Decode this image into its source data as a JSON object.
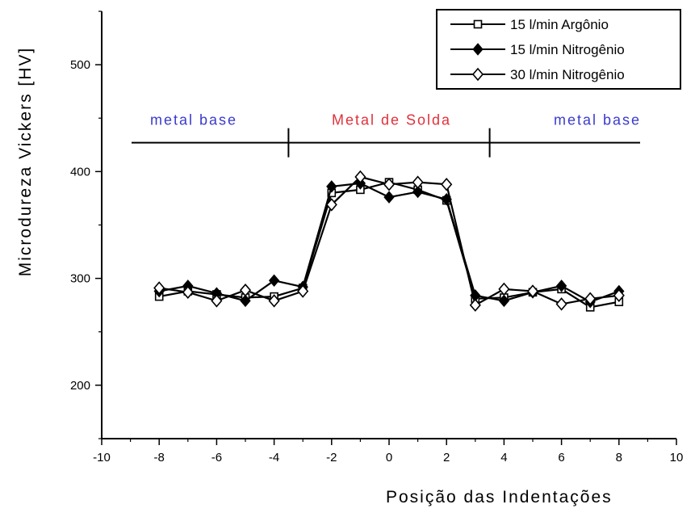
{
  "chart_data": {
    "type": "line",
    "xlabel": "Posição das Indentações",
    "ylabel": "Microdureza Vickers [HV]",
    "xlim": [
      -10,
      10
    ],
    "ylim": [
      150,
      550
    ],
    "x_ticks": [
      "-10",
      "-8",
      "-6",
      "-4",
      "-2",
      "0",
      "2",
      "4",
      "6",
      "8",
      "10"
    ],
    "y_ticks": [
      "200",
      "300",
      "400",
      "500"
    ],
    "legend_position": "top-right",
    "grid": false,
    "series": [
      {
        "name": "15 l/min Argônio",
        "marker": "open-square",
        "x": [
          -8,
          -7,
          -6,
          -5,
          -4,
          -3,
          -2,
          -1,
          0,
          1,
          2,
          3,
          4,
          5,
          6,
          7,
          8
        ],
        "y": [
          283,
          288,
          285,
          282,
          283,
          291,
          380,
          383,
          390,
          383,
          373,
          281,
          282,
          287,
          290,
          273,
          278
        ]
      },
      {
        "name": "15 l/min Nitrogênio",
        "marker": "filled-diamond",
        "x": [
          -8,
          -7,
          -6,
          -5,
          -4,
          -3,
          -2,
          -1,
          0,
          1,
          2,
          3,
          4,
          5,
          6,
          7,
          8
        ],
        "y": [
          288,
          293,
          286,
          279,
          298,
          292,
          386,
          389,
          376,
          381,
          374,
          284,
          279,
          287,
          293,
          278,
          288
        ]
      },
      {
        "name": "30 l/min Nitrogênio",
        "marker": "open-diamond",
        "x": [
          -8,
          -7,
          -6,
          -5,
          -4,
          -3,
          -2,
          -1,
          0,
          1,
          2,
          3,
          4,
          5,
          6,
          7,
          8
        ],
        "y": [
          291,
          287,
          279,
          289,
          279,
          288,
          369,
          395,
          388,
          390,
          388,
          275,
          290,
          288,
          276,
          281,
          284
        ]
      }
    ],
    "region_labels": [
      {
        "text": "metal base",
        "color": "#3a3acc"
      },
      {
        "text": "Metal de Solda",
        "color": "#e0303a"
      },
      {
        "text": "metal base",
        "color": "#3a3acc"
      }
    ],
    "region_boundaries_x": [
      -3.5,
      3.5
    ],
    "region_line_y": 427
  }
}
